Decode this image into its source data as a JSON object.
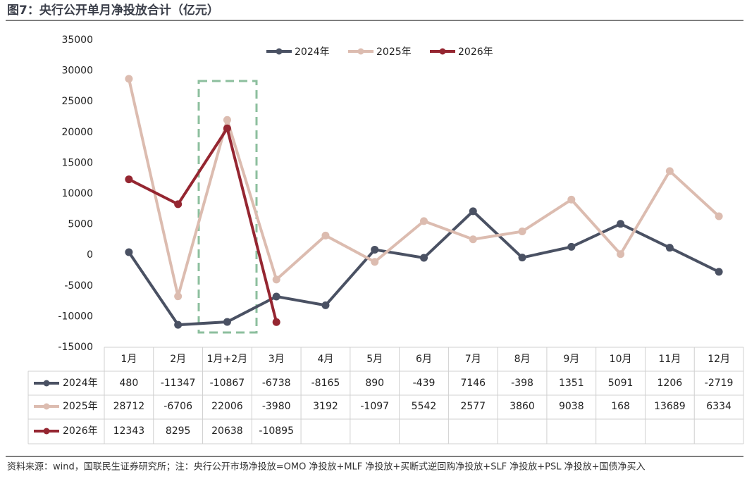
{
  "title": "图7：央行公开单月净投放合计（亿元）",
  "source": "资料来源：wind，国联民生证券研究所；注：央行公开市场净投放=OMO 净投放+MLF 净投放+买断式逆回购净投放+SLF 净投放+PSL 净投放+国债净买入",
  "chart_data": {
    "type": "line",
    "categories": [
      "1月",
      "2月",
      "1月+2月",
      "3月",
      "4月",
      "5月",
      "6月",
      "7月",
      "8月",
      "9月",
      "10月",
      "11月",
      "12月"
    ],
    "series": [
      {
        "name": "2024年",
        "color": "#4a5163",
        "values": [
          480,
          -11347,
          -10867,
          -6738,
          -8165,
          890,
          -439,
          7146,
          -398,
          1351,
          5091,
          1206,
          -2719
        ]
      },
      {
        "name": "2025年",
        "color": "#dcbcb0",
        "values": [
          28712,
          -6706,
          22006,
          -3980,
          3192,
          -1097,
          5542,
          2577,
          3860,
          9038,
          168,
          13689,
          6334
        ]
      },
      {
        "name": "2026年",
        "color": "#952631",
        "values": [
          12343,
          8295,
          20638,
          -10895,
          null,
          null,
          null,
          null,
          null,
          null,
          null,
          null,
          null
        ]
      }
    ],
    "ylim": [
      -15000,
      35000
    ],
    "yticks": [
      -15000,
      -10000,
      -5000,
      0,
      5000,
      10000,
      15000,
      20000,
      25000,
      30000,
      35000
    ],
    "legend": "top"
  }
}
